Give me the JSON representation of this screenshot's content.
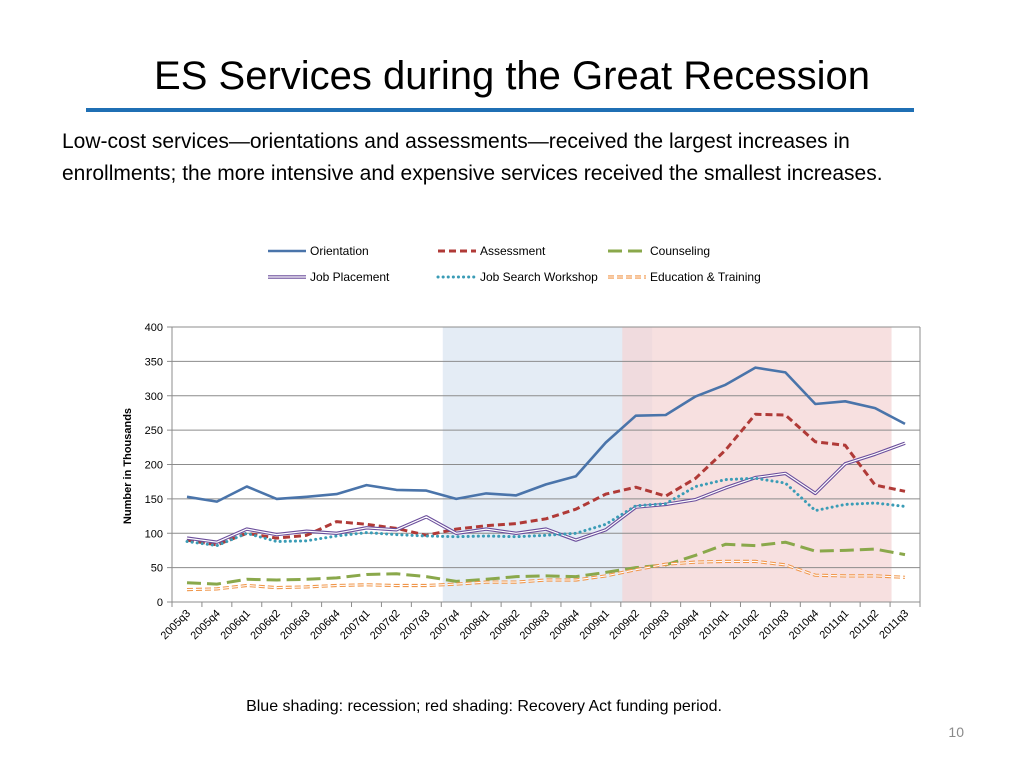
{
  "slide": {
    "title": "ES Services during the Great Recession",
    "intro_line1": "Low-cost services—orientations and assessments—received the largest increases in",
    "intro_line2": "enrollments; the more intensive and expensive services received the smallest increases.",
    "caption": "Blue shading: recession; red shading: Recovery Act funding period.",
    "page_number": "10",
    "rule_color": "#1f6fb4"
  },
  "chart_data": {
    "type": "line",
    "title": "",
    "xlabel": "",
    "ylabel": "Number in Thousands",
    "ylim": [
      0,
      400
    ],
    "yticks": [
      0,
      50,
      100,
      150,
      200,
      250,
      300,
      350,
      400
    ],
    "grid": true,
    "legend_position": "top",
    "categories": [
      "2005q3",
      "2005q4",
      "2006q1",
      "2006q2",
      "2006q3",
      "2006q4",
      "2007q1",
      "2007q2",
      "2007q3",
      "2007q4",
      "2008q1",
      "2008q2",
      "2008q3",
      "2008q4",
      "2009q1",
      "2009q2",
      "2009q3",
      "2009q4",
      "2010q1",
      "2010q2",
      "2010q3",
      "2010q4",
      "2011q1",
      "2011q2",
      "2011q3"
    ],
    "shading": [
      {
        "label": "recession",
        "from": "2007q4",
        "to": "2009q2",
        "color": "#dbe5f1"
      },
      {
        "label": "Recovery Act funding period",
        "from": "2009q2",
        "to": "2011q2",
        "color": "#f4d5d5"
      }
    ],
    "series": [
      {
        "name": "Orientation",
        "color": "#4a74aa",
        "style": "solid",
        "values": [
          153,
          146,
          168,
          150,
          153,
          157,
          170,
          163,
          162,
          150,
          158,
          155,
          171,
          183,
          232,
          271,
          272,
          299,
          316,
          341,
          334,
          288,
          292,
          282,
          259
        ]
      },
      {
        "name": "Assessment",
        "color": "#b03a37",
        "style": "dashed",
        "values": [
          90,
          83,
          100,
          93,
          97,
          117,
          113,
          107,
          97,
          106,
          111,
          114,
          121,
          135,
          157,
          167,
          154,
          180,
          221,
          273,
          272,
          233,
          228,
          170,
          161
        ]
      },
      {
        "name": "Counseling",
        "color": "#8aa84b",
        "style": "longdash",
        "values": [
          28,
          26,
          33,
          32,
          33,
          35,
          40,
          41,
          37,
          30,
          33,
          37,
          38,
          37,
          43,
          50,
          54,
          68,
          84,
          82,
          87,
          74,
          75,
          77,
          69
        ]
      },
      {
        "name": "Job Placement",
        "color": "#6b4e9c",
        "style": "double",
        "values": [
          93,
          87,
          106,
          98,
          103,
          100,
          108,
          105,
          124,
          100,
          106,
          100,
          106,
          90,
          105,
          138,
          142,
          149,
          166,
          181,
          187,
          158,
          201,
          215,
          231
        ]
      },
      {
        "name": "Job Search Workshop",
        "color": "#3a9cb6",
        "style": "dotted",
        "values": [
          88,
          82,
          100,
          88,
          89,
          96,
          101,
          98,
          96,
          95,
          96,
          95,
          97,
          100,
          113,
          140,
          143,
          168,
          178,
          180,
          173,
          133,
          142,
          144,
          139
        ]
      },
      {
        "name": "Education & Training",
        "color": "#f0964a",
        "style": "dashed-double",
        "values": [
          18,
          19,
          24,
          21,
          22,
          24,
          25,
          24,
          24,
          26,
          29,
          29,
          32,
          32,
          38,
          47,
          55,
          58,
          59,
          59,
          54,
          39,
          38,
          38,
          36
        ]
      }
    ]
  }
}
